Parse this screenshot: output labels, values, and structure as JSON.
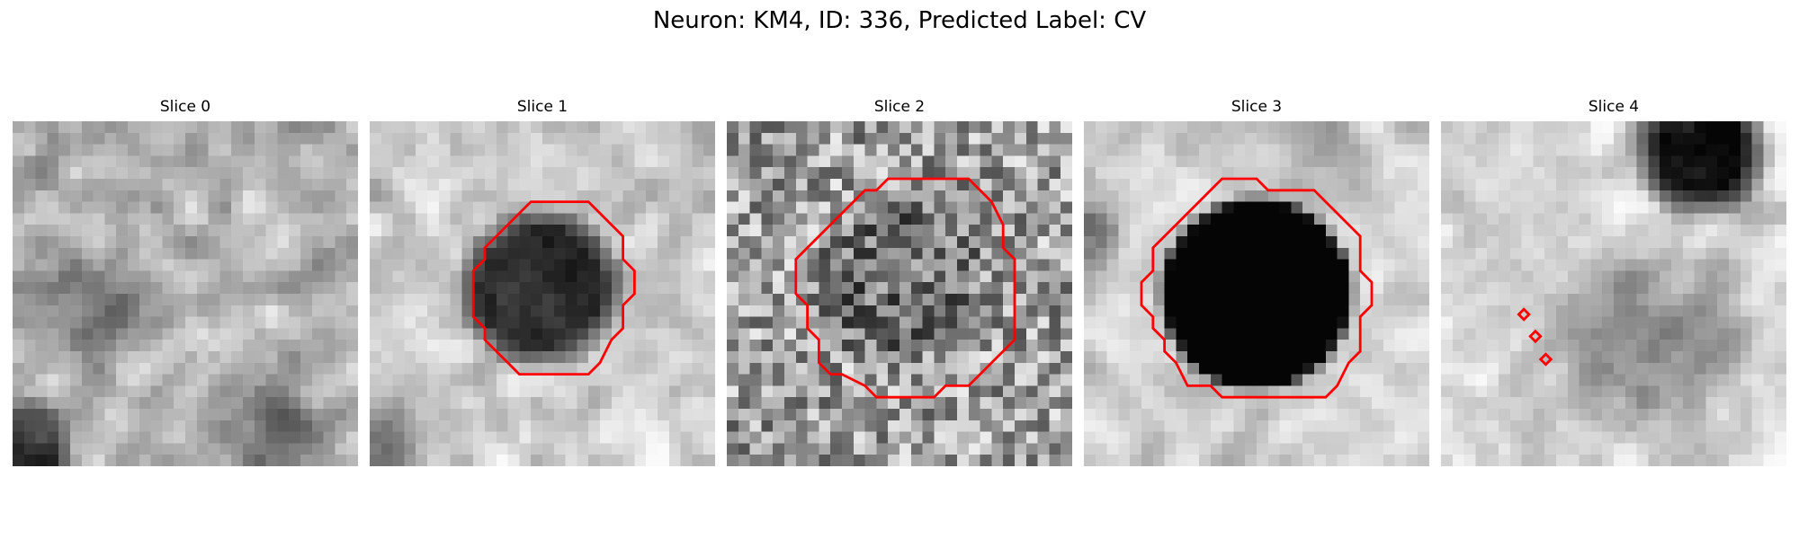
{
  "figure": {
    "title": "Neuron: KM4, ID: 336, Predicted Label: CV",
    "contour_color": "#ff0000",
    "panels": [
      {
        "title": "Slice 0",
        "contour": "none"
      },
      {
        "title": "Slice 1",
        "contour": "polygon"
      },
      {
        "title": "Slice 2",
        "contour": "polygon"
      },
      {
        "title": "Slice 3",
        "contour": "polygon"
      },
      {
        "title": "Slice 4",
        "contour": "small-diamonds"
      }
    ]
  }
}
